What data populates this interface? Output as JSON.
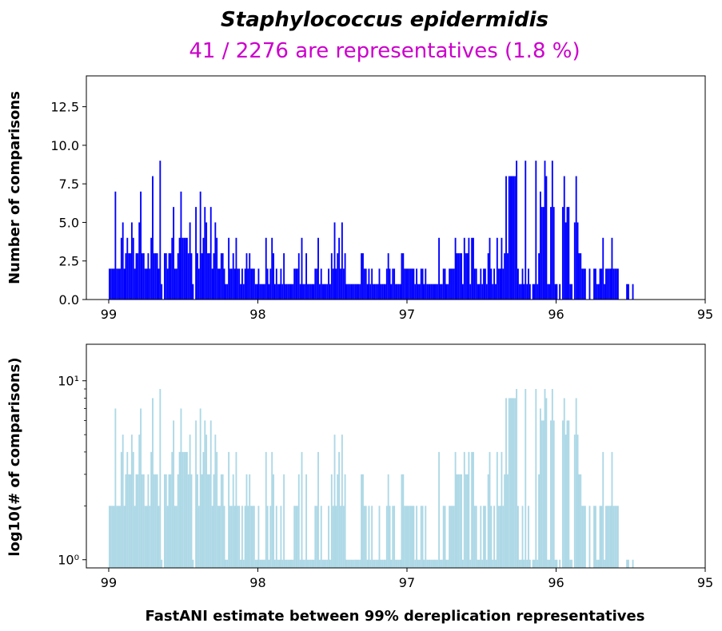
{
  "figure": {
    "title": "Staphylococcus epidermidis",
    "subtitle": "41 / 2276 are representatives (1.8 %)",
    "xlabel": "FastANI estimate between 99% dereplication representatives"
  },
  "colors": {
    "subtitle": "#cc00cc",
    "top_bars": "#0000ff",
    "bottom_bars": "#add8e6",
    "axes": "#000000"
  },
  "chart_data": [
    {
      "type": "bar",
      "ylabel": "Number of comparisons",
      "xlim": [
        99.15,
        95.0
      ],
      "ylim": [
        0,
        14.5
      ],
      "yscale": "linear",
      "xticks": [
        99,
        98,
        97,
        96,
        95
      ],
      "yticks": [
        0.0,
        2.5,
        5.0,
        7.5,
        10.0,
        12.5
      ],
      "ytick_labels": [
        "0.0",
        "2.5",
        "5.0",
        "7.5",
        "10.0",
        "12.5"
      ],
      "bin_width": 0.01,
      "x": [],
      "values": []
    },
    {
      "type": "bar",
      "ylabel": "log10(# of comparisons)",
      "xlim": [
        99.15,
        95.0
      ],
      "ylim": [
        0.9,
        16
      ],
      "yscale": "log",
      "xticks": [
        99,
        98,
        97,
        96,
        95
      ],
      "yticks": [
        1,
        10
      ],
      "ytick_labels": [
        "10⁰",
        "10¹"
      ],
      "bin_width": 0.01,
      "x": [],
      "values": []
    }
  ]
}
